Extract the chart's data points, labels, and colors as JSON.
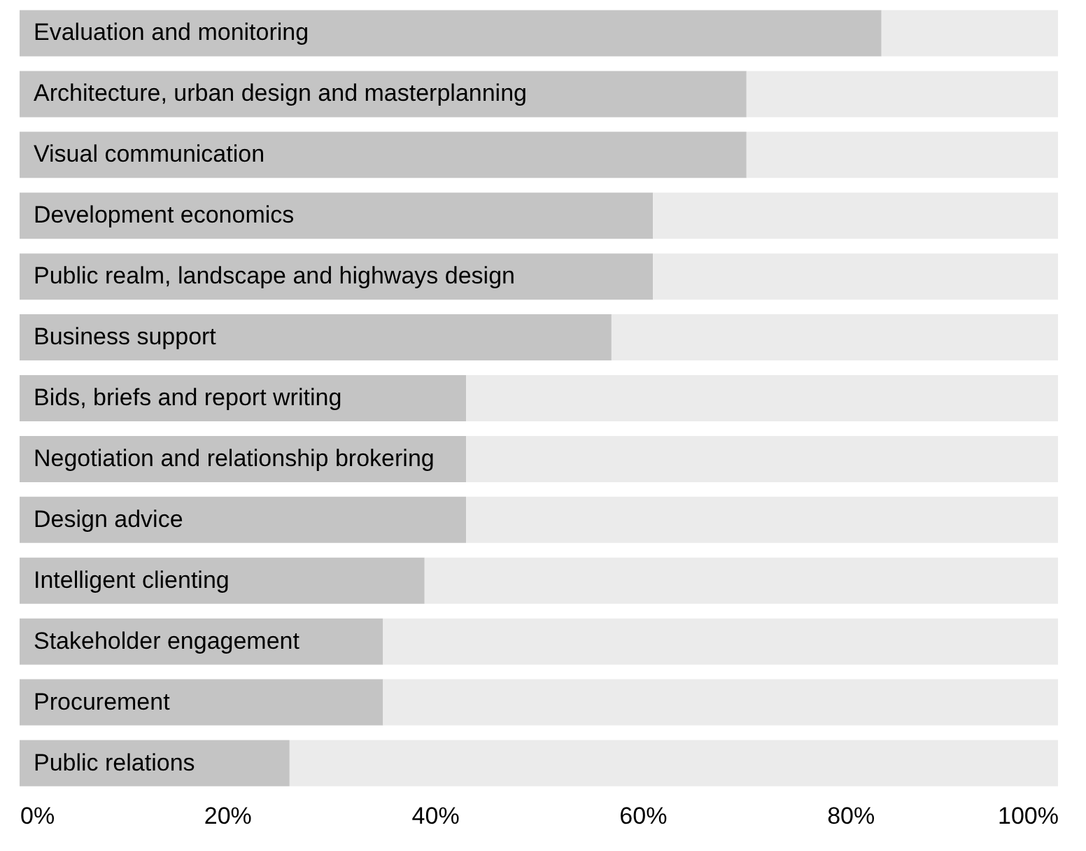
{
  "chart_data": {
    "type": "bar",
    "orientation": "horizontal",
    "stacked": true,
    "categories": [
      "Evaluation and monitoring",
      "Architecture, urban design and masterplanning",
      "Visual communication",
      "Development economics",
      "Public realm, landscape and highways design",
      "Business support",
      "Bids, briefs and report writing",
      "Negotiation and relationship brokering",
      "Design advice",
      "Intelligent clienting",
      "Stakeholder engagement",
      "Procurement",
      "Public relations"
    ],
    "series": [
      {
        "color": "#c4c4c4",
        "values": [
          83,
          70,
          70,
          61,
          61,
          57,
          43,
          43,
          43,
          39,
          35,
          35,
          26
        ]
      },
      {
        "color": "#ebebeb",
        "values": [
          17,
          30,
          30,
          39,
          39,
          43,
          57,
          57,
          57,
          61,
          65,
          65,
          74
        ]
      }
    ],
    "xlim": [
      0,
      100
    ],
    "xticks": [
      {
        "value": 0,
        "label": "0%"
      },
      {
        "value": 20,
        "label": "20%"
      },
      {
        "value": 40,
        "label": "40%"
      },
      {
        "value": 60,
        "label": "60%"
      },
      {
        "value": 80,
        "label": "80%"
      },
      {
        "value": 100,
        "label": "100%"
      }
    ],
    "grid": false
  }
}
